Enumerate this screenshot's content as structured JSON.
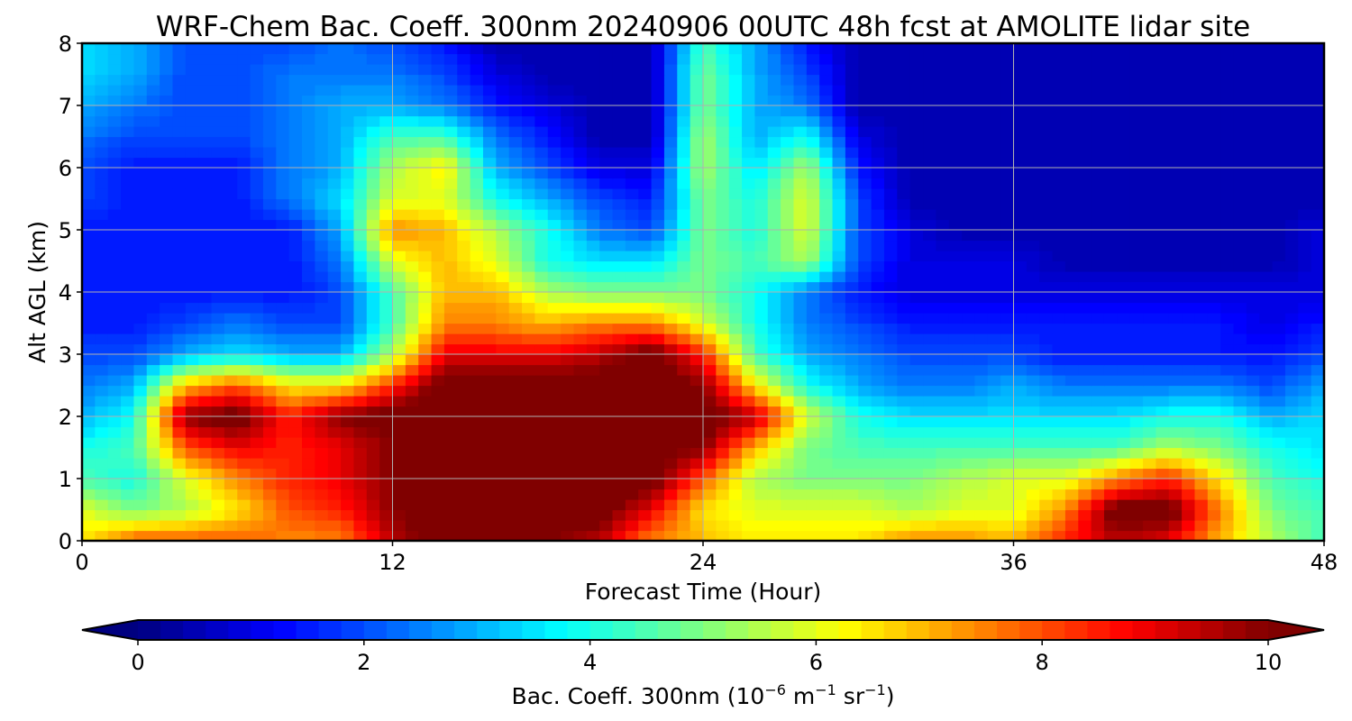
{
  "chart_data": {
    "type": "heatmap",
    "title": "WRF-Chem Bac. Coeff. 300nm  20240906 00UTC 48h fcst at AMOLITE lidar site",
    "xlabel": "Forecast Time (Hour)",
    "ylabel": "Alt AGL (km)",
    "xlim": [
      0,
      48
    ],
    "ylim": [
      0,
      8
    ],
    "x_ticks": [
      "0",
      "12",
      "24",
      "36",
      "48"
    ],
    "y_ticks": [
      "0",
      "1",
      "2",
      "3",
      "4",
      "5",
      "6",
      "7",
      "8"
    ],
    "grid": true,
    "colormap": "jet",
    "colorbar": {
      "label_main": "Bac. Coeff. 300nm  (10",
      "label_exp1": "−6",
      "label_mid": " m",
      "label_exp2": "−1",
      "label_mid2": " sr",
      "label_exp3": "−1",
      "label_end": ")",
      "range": [
        0,
        10
      ],
      "extend": "both",
      "ticks": [
        "0",
        "2",
        "4",
        "6",
        "8",
        "10"
      ]
    },
    "x": [
      0,
      2,
      4,
      6,
      8,
      10,
      12,
      14,
      16,
      18,
      20,
      22,
      24,
      26,
      28,
      30,
      32,
      34,
      36,
      38,
      40,
      42,
      44,
      46,
      48
    ],
    "y": [
      0,
      0.5,
      1,
      1.5,
      2,
      2.5,
      3,
      3.5,
      4,
      4.5,
      5,
      5.5,
      6,
      6.5,
      7,
      7.5,
      8
    ],
    "z": [
      [
        6.5,
        8.0,
        8.0,
        8.0,
        7.5,
        7.5,
        9.5,
        10.5,
        10.5,
        10.0,
        9.5,
        7.5,
        7.0,
        6.5,
        6.5,
        6.5,
        7.5,
        7.5,
        7.0,
        8.5,
        9.5,
        9.0,
        7.0,
        5.5,
        4.5
      ],
      [
        6.0,
        5.0,
        5.5,
        6.5,
        8.0,
        8.5,
        10.0,
        10.5,
        10.5,
        10.5,
        10.5,
        9.0,
        6.5,
        6.0,
        6.0,
        6.0,
        5.5,
        6.0,
        6.0,
        7.5,
        10.5,
        10.5,
        7.5,
        5.0,
        4.5
      ],
      [
        4.5,
        4.0,
        6.0,
        7.5,
        8.5,
        9.0,
        10.0,
        10.5,
        10.5,
        10.5,
        10.5,
        10.5,
        8.0,
        5.5,
        5.0,
        5.0,
        5.0,
        5.5,
        6.0,
        6.0,
        7.5,
        8.5,
        6.5,
        4.5,
        4.0
      ],
      [
        4.0,
        4.5,
        8.0,
        9.0,
        8.5,
        9.0,
        10.0,
        10.5,
        10.5,
        10.5,
        10.5,
        10.5,
        10.0,
        7.0,
        5.0,
        4.5,
        4.5,
        4.5,
        4.5,
        4.5,
        4.5,
        5.5,
        5.0,
        4.0,
        3.5
      ],
      [
        3.0,
        4.0,
        10.0,
        10.5,
        8.5,
        10.0,
        10.5,
        10.5,
        10.5,
        10.5,
        10.5,
        10.5,
        10.5,
        9.5,
        6.0,
        4.0,
        3.5,
        3.5,
        3.5,
        3.5,
        3.5,
        4.0,
        4.0,
        3.0,
        3.5
      ],
      [
        2.5,
        3.0,
        7.0,
        8.0,
        6.5,
        6.5,
        8.5,
        10.5,
        10.5,
        10.5,
        10.5,
        10.5,
        10.0,
        6.5,
        4.0,
        3.0,
        2.5,
        2.5,
        3.0,
        2.5,
        2.5,
        2.5,
        2.5,
        2.0,
        3.0
      ],
      [
        2.0,
        2.0,
        3.0,
        3.5,
        3.0,
        3.0,
        5.5,
        9.0,
        9.0,
        9.0,
        9.5,
        10.5,
        8.5,
        4.5,
        3.0,
        2.5,
        2.0,
        2.0,
        2.0,
        1.5,
        1.5,
        1.5,
        1.5,
        1.5,
        2.0
      ],
      [
        1.5,
        1.5,
        2.0,
        2.5,
        2.0,
        2.0,
        4.5,
        7.5,
        7.5,
        7.0,
        7.5,
        7.5,
        6.0,
        4.0,
        2.5,
        2.0,
        1.5,
        1.5,
        1.5,
        1.5,
        1.5,
        1.5,
        1.5,
        1.0,
        1.5
      ],
      [
        1.5,
        1.5,
        1.5,
        1.5,
        1.5,
        2.0,
        4.5,
        7.0,
        7.0,
        5.5,
        5.0,
        5.0,
        5.0,
        4.0,
        2.5,
        1.5,
        1.0,
        1.0,
        1.0,
        1.0,
        1.0,
        1.0,
        1.0,
        1.0,
        1.0
      ],
      [
        1.5,
        1.5,
        1.5,
        1.5,
        1.5,
        2.5,
        6.0,
        7.0,
        6.0,
        4.0,
        3.5,
        3.5,
        5.0,
        4.5,
        5.5,
        2.0,
        1.0,
        1.0,
        1.0,
        0.5,
        0.5,
        0.5,
        0.5,
        0.5,
        1.0
      ],
      [
        1.5,
        1.5,
        1.5,
        1.5,
        1.5,
        3.0,
        7.5,
        7.0,
        5.5,
        4.0,
        2.5,
        2.0,
        5.0,
        4.0,
        6.0,
        2.0,
        1.0,
        0.5,
        0.5,
        0.5,
        0.5,
        0.5,
        0.5,
        0.5,
        1.0
      ],
      [
        2.0,
        1.5,
        1.5,
        1.5,
        2.5,
        3.5,
        6.0,
        6.0,
        4.0,
        3.0,
        2.0,
        1.5,
        5.0,
        4.0,
        6.0,
        2.0,
        0.5,
        0.5,
        0.5,
        0.5,
        0.5,
        0.5,
        0.5,
        0.5,
        0.5
      ],
      [
        2.0,
        1.5,
        1.5,
        1.5,
        2.5,
        3.0,
        5.5,
        6.5,
        3.0,
        2.0,
        1.0,
        1.0,
        5.5,
        3.5,
        5.5,
        1.5,
        0.5,
        0.5,
        0.5,
        0.5,
        0.5,
        0.5,
        0.5,
        0.5,
        0.5
      ],
      [
        2.5,
        2.0,
        2.0,
        2.0,
        2.5,
        3.0,
        4.5,
        4.5,
        2.5,
        1.5,
        0.5,
        0.5,
        5.5,
        3.0,
        4.0,
        1.0,
        0.5,
        0.5,
        0.5,
        0.5,
        0.5,
        0.5,
        0.5,
        0.5,
        0.5
      ],
      [
        3.0,
        2.5,
        2.0,
        2.0,
        2.5,
        3.0,
        3.0,
        2.5,
        1.5,
        1.0,
        0.5,
        0.5,
        5.0,
        3.0,
        2.5,
        0.5,
        0.5,
        0.5,
        0.5,
        0.5,
        0.5,
        0.5,
        0.5,
        0.5,
        0.5
      ],
      [
        3.5,
        3.0,
        2.0,
        2.0,
        2.5,
        2.5,
        2.5,
        2.0,
        1.0,
        0.5,
        0.5,
        0.5,
        5.0,
        3.0,
        2.0,
        0.5,
        0.5,
        0.5,
        0.5,
        0.5,
        0.5,
        0.5,
        0.5,
        0.5,
        0.5
      ],
      [
        3.5,
        3.0,
        2.0,
        2.0,
        2.0,
        2.5,
        2.0,
        1.5,
        0.5,
        0.5,
        0.5,
        0.5,
        4.5,
        3.0,
        1.5,
        0.5,
        0.5,
        0.5,
        0.5,
        0.5,
        0.5,
        0.5,
        0.5,
        0.5,
        0.5
      ]
    ]
  }
}
